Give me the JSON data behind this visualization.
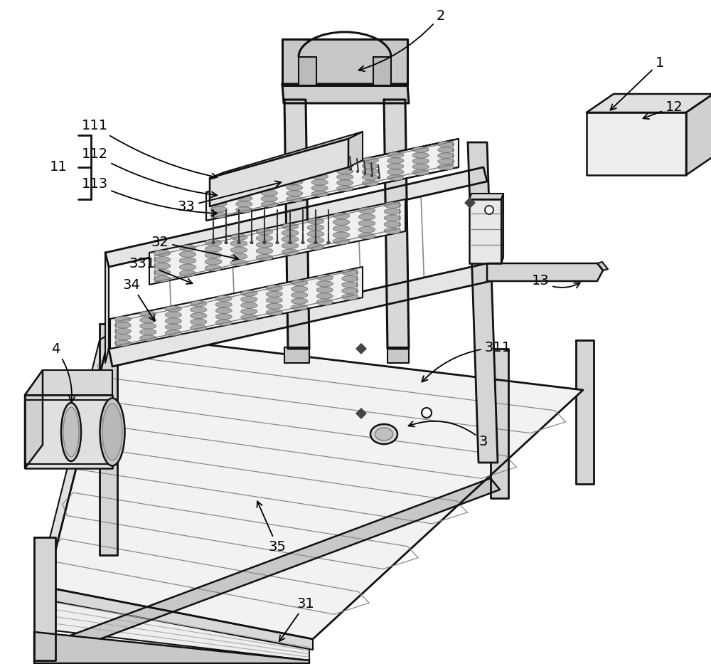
{
  "bg_color": "#ffffff",
  "figsize": [
    10.0,
    9.33
  ],
  "dpi": 100
}
